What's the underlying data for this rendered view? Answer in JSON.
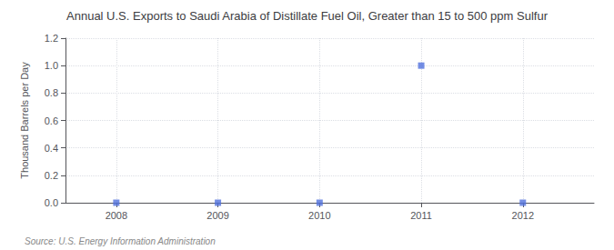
{
  "chart_data": {
    "type": "scatter",
    "title": "Annual U.S. Exports to Saudi Arabia of Distillate Fuel Oil, Greater than 15 to 500 ppm Sulfur",
    "ylabel": "Thousand Barrels per Day",
    "annotation": "Source: U.S. Energy Information Administration",
    "x": [
      2008,
      2009,
      2010,
      2011,
      2012
    ],
    "values": [
      0.0,
      0.0,
      0.0,
      1.0,
      0.0
    ],
    "marker": "square",
    "xlim": [
      2007.5,
      2012.7
    ],
    "xticks": [
      2008,
      2009,
      2010,
      2011,
      2012
    ],
    "ylim": [
      0.0,
      1.2
    ],
    "yticks": [
      {
        "value": 0.0,
        "label": "0.0"
      },
      0.2,
      0.4,
      0.6,
      0.8,
      {
        "value": 1.0,
        "label": "1.0"
      },
      1.2
    ],
    "grid": true
  }
}
